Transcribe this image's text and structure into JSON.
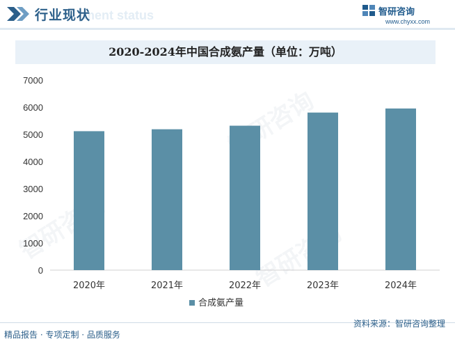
{
  "header": {
    "title": "行业现状",
    "subtitle_ghost": "ment status"
  },
  "brand": {
    "name": "智研咨询",
    "url": "www.chyxx.com"
  },
  "watermark_text": "智研咨询",
  "chart_data": {
    "type": "bar",
    "title": "2020-2024年中国合成氨产量（单位：万吨）",
    "categories": [
      "2020年",
      "2021年",
      "2022年",
      "2023年",
      "2024年"
    ],
    "series": [
      {
        "name": "合成氨产量",
        "values": [
          5117,
          5188,
          5319,
          5803,
          5953
        ]
      }
    ],
    "ylim": [
      0,
      7000
    ],
    "yticks": [
      0,
      1000,
      2000,
      3000,
      4000,
      5000,
      6000,
      7000
    ],
    "legend": "bottom",
    "grid": false,
    "colors": {
      "bar": "#5b8fa6",
      "axis": "#d0d0d0",
      "text": "#333333"
    }
  },
  "footer": {
    "left": "精品报告 · 专项定制 · 品质服务",
    "right": "资料来源：智研咨询整理"
  }
}
